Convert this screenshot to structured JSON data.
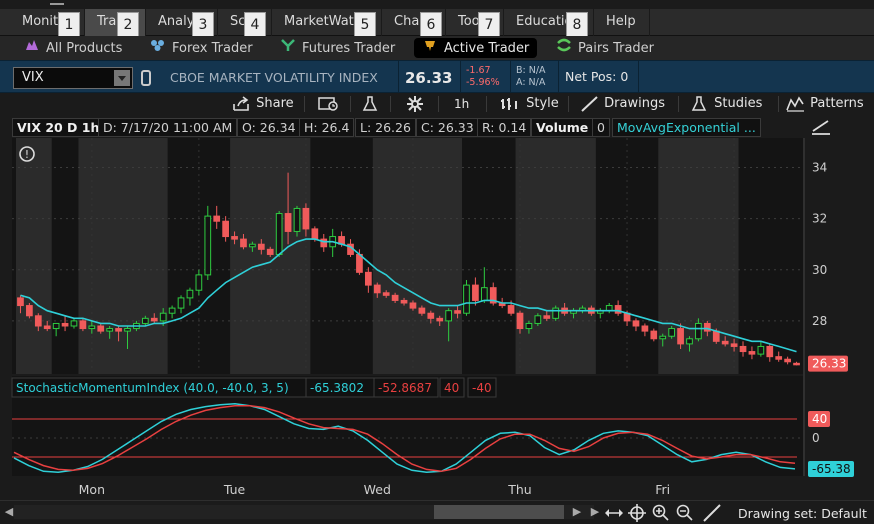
{
  "tabs": [
    {
      "label": "Monitor",
      "badge": "1",
      "active": false
    },
    {
      "label": "Trade",
      "badge": "2",
      "active": true
    },
    {
      "label": "Analyze",
      "badge": "3",
      "active": false
    },
    {
      "label": "Scan",
      "badge": "4",
      "active": false
    },
    {
      "label": "MarketWatch",
      "badge": "5",
      "active": false
    },
    {
      "label": "Charts",
      "badge": "6",
      "active": false
    },
    {
      "label": "Tools",
      "badge": "7",
      "active": false
    },
    {
      "label": "Education",
      "badge": "8",
      "active": false
    },
    {
      "label": "Help",
      "badge": "",
      "active": false
    }
  ],
  "subtabs": [
    {
      "label": "All Products",
      "icon": "hand-icon"
    },
    {
      "label": "Forex Trader",
      "icon": "forex-icon"
    },
    {
      "label": "Futures Trader",
      "icon": "futures-icon"
    },
    {
      "label": "Active Trader",
      "icon": "active-trader-icon"
    },
    {
      "label": "Pairs Trader",
      "icon": "pairs-icon"
    }
  ],
  "symbol_bar": {
    "symbol": "VIX",
    "description": "CBOE MARKET VOLATILITY INDEX",
    "last": "26.33",
    "net_change": "-1.67",
    "pct_change": "-5.96%",
    "bid": "B: N/A",
    "ask": "A: N/A",
    "net_pos": "Net Pos: 0"
  },
  "toolbar": {
    "share": "Share",
    "timeframe": "1h",
    "style": "Style",
    "drawings": "Drawings",
    "studies": "Studies",
    "patterns": "Patterns"
  },
  "infobar": {
    "label": "VIX 20 D 1h",
    "date": "D: 7/17/20 11:00 AM",
    "open": "O: 26.34",
    "high": "H: 26.4",
    "low": "L: 26.26",
    "close": "C: 26.33",
    "range": "R: 0.14",
    "volume_label": "Volume",
    "volume": "0",
    "study": "MovAvgExponential ..."
  },
  "lower_study": {
    "label": "StochasticMomentumIndex (40.0, -40.0, 3, 5)",
    "smi": "-65.3802",
    "avgsmi": "-52.8687",
    "over_bought": "40",
    "over_sold": "-40",
    "axis_labels": [
      "40",
      "0"
    ],
    "last_value": "-65.38"
  },
  "price_axis": {
    "ticks": [
      "34",
      "32",
      "30",
      "28"
    ],
    "last_price": "26.33"
  },
  "day_labels": [
    "Mon",
    "Tue",
    "Wed",
    "Thu",
    "Fri"
  ],
  "drawing_set": "Drawing set: Default",
  "colors": {
    "up": "#2ecc40",
    "down": "#f05b5b",
    "ema": "#2fd0d8",
    "smi_line": "#2fd0d8",
    "avg_line": "#e84040",
    "band_dark": "#141414",
    "band_light": "#2e2e2e"
  },
  "chart_data": [
    {
      "type": "candlestick",
      "title": "VIX 20 D 1h",
      "ylim": [
        26,
        35
      ],
      "yticks": [
        34,
        32,
        30,
        28
      ],
      "x": [
        "Mon",
        "Tue",
        "Wed",
        "Thu",
        "Fri"
      ],
      "candles": [
        [
          28.9,
          29.0,
          28.3,
          28.6
        ],
        [
          28.6,
          28.7,
          28.1,
          28.2
        ],
        [
          28.2,
          28.3,
          27.6,
          27.8
        ],
        [
          27.8,
          28.0,
          27.6,
          27.7
        ],
        [
          27.7,
          27.9,
          27.4,
          27.9
        ],
        [
          27.9,
          28.2,
          27.6,
          27.8
        ],
        [
          27.8,
          28.1,
          27.7,
          28.0
        ],
        [
          28.0,
          28.1,
          27.6,
          27.7
        ],
        [
          27.7,
          28.0,
          27.5,
          27.8
        ],
        [
          27.8,
          27.9,
          27.5,
          27.6
        ],
        [
          27.6,
          27.8,
          27.3,
          27.7
        ],
        [
          27.7,
          27.8,
          27.2,
          27.6
        ],
        [
          27.6,
          27.8,
          26.9,
          27.7
        ],
        [
          27.7,
          28.0,
          27.6,
          27.9
        ],
        [
          27.9,
          28.2,
          27.8,
          28.1
        ],
        [
          28.1,
          28.3,
          27.9,
          28.0
        ],
        [
          28.0,
          28.5,
          27.8,
          28.3
        ],
        [
          28.3,
          28.6,
          28.1,
          28.5
        ],
        [
          28.5,
          29.0,
          28.3,
          28.9
        ],
        [
          28.9,
          29.3,
          28.6,
          29.2
        ],
        [
          29.2,
          30.0,
          29.0,
          29.8
        ],
        [
          29.8,
          32.5,
          29.6,
          32.1
        ],
        [
          32.1,
          32.5,
          31.6,
          31.9
        ],
        [
          31.9,
          32.1,
          31.1,
          31.3
        ],
        [
          31.3,
          31.5,
          31.0,
          31.2
        ],
        [
          31.2,
          31.4,
          30.8,
          30.9
        ],
        [
          30.9,
          31.1,
          30.7,
          31.0
        ],
        [
          31.0,
          31.2,
          30.6,
          30.8
        ],
        [
          30.8,
          30.9,
          30.5,
          30.6
        ],
        [
          30.6,
          32.3,
          30.5,
          32.2
        ],
        [
          32.2,
          33.8,
          31.0,
          31.5
        ],
        [
          31.5,
          32.5,
          31.3,
          32.4
        ],
        [
          32.4,
          32.6,
          31.3,
          31.6
        ],
        [
          31.6,
          31.7,
          31.1,
          31.2
        ],
        [
          31.2,
          31.4,
          30.7,
          30.9
        ],
        [
          30.9,
          31.6,
          30.5,
          31.3
        ],
        [
          31.3,
          31.5,
          30.9,
          31.0
        ],
        [
          31.0,
          31.2,
          30.5,
          30.6
        ],
        [
          30.6,
          30.8,
          29.8,
          29.9
        ],
        [
          29.9,
          30.1,
          29.1,
          29.4
        ],
        [
          29.4,
          29.5,
          28.9,
          29.1
        ],
        [
          29.1,
          29.2,
          28.9,
          29.0
        ],
        [
          29.0,
          29.1,
          28.7,
          28.8
        ],
        [
          28.8,
          28.9,
          28.6,
          28.7
        ],
        [
          28.7,
          28.8,
          28.4,
          28.5
        ],
        [
          28.5,
          28.6,
          28.2,
          28.3
        ],
        [
          28.3,
          28.4,
          27.9,
          28.1
        ],
        [
          28.1,
          28.2,
          27.8,
          28.0
        ],
        [
          28.0,
          28.5,
          27.2,
          28.4
        ],
        [
          28.4,
          28.6,
          28.1,
          28.3
        ],
        [
          28.3,
          29.6,
          28.2,
          29.4
        ],
        [
          29.4,
          29.7,
          28.6,
          28.8
        ],
        [
          28.8,
          30.1,
          28.7,
          29.3
        ],
        [
          29.3,
          29.5,
          28.6,
          28.7
        ],
        [
          28.7,
          28.9,
          28.5,
          28.6
        ],
        [
          28.6,
          28.8,
          28.2,
          28.3
        ],
        [
          28.3,
          28.4,
          27.5,
          27.7
        ],
        [
          27.7,
          28.0,
          27.5,
          27.9
        ],
        [
          27.9,
          28.3,
          27.8,
          28.2
        ],
        [
          28.2,
          28.4,
          28.0,
          28.1
        ],
        [
          28.1,
          28.6,
          28.0,
          28.5
        ],
        [
          28.5,
          28.7,
          28.2,
          28.3
        ],
        [
          28.3,
          28.5,
          28.1,
          28.4
        ],
        [
          28.4,
          28.6,
          28.3,
          28.5
        ],
        [
          28.5,
          28.6,
          28.2,
          28.3
        ],
        [
          28.3,
          28.5,
          28.1,
          28.4
        ],
        [
          28.4,
          28.7,
          28.3,
          28.6
        ],
        [
          28.6,
          28.8,
          28.2,
          28.3
        ],
        [
          28.3,
          28.4,
          27.8,
          28.0
        ],
        [
          28.0,
          28.1,
          27.6,
          27.8
        ],
        [
          27.8,
          27.9,
          27.4,
          27.6
        ],
        [
          27.6,
          27.7,
          27.2,
          27.3
        ],
        [
          27.3,
          27.5,
          27.0,
          27.4
        ],
        [
          27.4,
          27.8,
          27.3,
          27.7
        ],
        [
          27.7,
          27.9,
          26.9,
          27.1
        ],
        [
          27.1,
          27.4,
          26.8,
          27.3
        ],
        [
          27.3,
          28.1,
          27.2,
          27.9
        ],
        [
          27.9,
          28.0,
          27.4,
          27.6
        ],
        [
          27.6,
          27.7,
          27.1,
          27.2
        ],
        [
          27.2,
          27.4,
          27.0,
          27.1
        ],
        [
          27.1,
          27.3,
          26.8,
          27.0
        ],
        [
          27.0,
          27.2,
          26.6,
          26.8
        ],
        [
          26.8,
          27.0,
          26.5,
          26.7
        ],
        [
          26.7,
          27.2,
          26.6,
          27.0
        ],
        [
          27.0,
          27.1,
          26.4,
          26.6
        ],
        [
          26.6,
          26.8,
          26.4,
          26.5
        ],
        [
          26.5,
          26.6,
          26.3,
          26.4
        ],
        [
          26.34,
          26.4,
          26.26,
          26.33
        ]
      ],
      "ema": [
        29.0,
        28.9,
        28.6,
        28.4,
        28.3,
        28.2,
        28.1,
        28.1,
        28.0,
        27.9,
        27.9,
        27.8,
        27.8,
        27.8,
        27.8,
        27.9,
        27.9,
        28.0,
        28.1,
        28.3,
        28.5,
        28.9,
        29.2,
        29.5,
        29.7,
        29.9,
        30.1,
        30.2,
        30.3,
        30.6,
        30.9,
        31.1,
        31.2,
        31.2,
        31.1,
        31.1,
        31.0,
        30.9,
        30.6,
        30.3,
        30.0,
        29.8,
        29.5,
        29.3,
        29.1,
        28.9,
        28.7,
        28.6,
        28.6,
        28.6,
        28.7,
        28.7,
        28.8,
        28.8,
        28.7,
        28.7,
        28.6,
        28.5,
        28.5,
        28.4,
        28.4,
        28.4,
        28.4,
        28.4,
        28.4,
        28.4,
        28.4,
        28.4,
        28.3,
        28.2,
        28.1,
        28.0,
        27.9,
        27.9,
        27.8,
        27.7,
        27.7,
        27.7,
        27.6,
        27.5,
        27.4,
        27.3,
        27.2,
        27.2,
        27.1,
        27.0,
        26.9,
        26.8
      ]
    },
    {
      "type": "line",
      "title": "StochasticMomentumIndex (40.0, -40.0, 3, 5)",
      "ylim": [
        -80,
        80
      ],
      "yticks": [
        40,
        0
      ],
      "series": [
        {
          "name": "SMI",
          "values": [
            -42,
            -58,
            -70,
            -72,
            -68,
            -60,
            -45,
            -25,
            -5,
            15,
            35,
            50,
            60,
            66,
            70,
            72,
            68,
            60,
            45,
            30,
            20,
            18,
            25,
            15,
            -5,
            -30,
            -55,
            -68,
            -72,
            -70,
            -55,
            -30,
            -5,
            10,
            12,
            5,
            -20,
            -35,
            -25,
            -5,
            10,
            15,
            12,
            5,
            -15,
            -35,
            -50,
            -45,
            -35,
            -30,
            -35,
            -50,
            -62,
            -65
          ]
        },
        {
          "name": "AVGSMI",
          "values": [
            -30,
            -45,
            -58,
            -66,
            -68,
            -64,
            -54,
            -38,
            -20,
            -2,
            18,
            35,
            48,
            58,
            64,
            68,
            68,
            64,
            55,
            42,
            30,
            22,
            20,
            18,
            8,
            -12,
            -35,
            -55,
            -66,
            -70,
            -64,
            -45,
            -22,
            -2,
            8,
            8,
            -5,
            -22,
            -28,
            -18,
            0,
            10,
            12,
            8,
            -5,
            -22,
            -38,
            -44,
            -40,
            -35,
            -35,
            -42,
            -50,
            -53
          ]
        }
      ],
      "levels": [
        40,
        -40
      ]
    }
  ]
}
